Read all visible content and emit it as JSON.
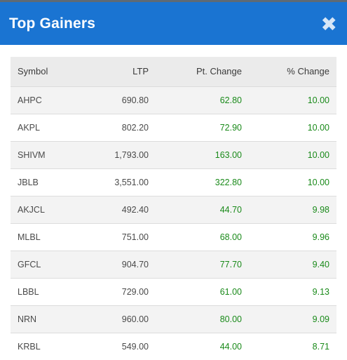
{
  "dialog": {
    "title": "Top Gainers",
    "close_icon": "close-icon"
  },
  "table": {
    "headers": {
      "symbol": "Symbol",
      "ltp": "LTP",
      "pt_change": "Pt. Change",
      "pct_change": "% Change"
    },
    "rows": [
      {
        "symbol": "AHPC",
        "ltp": "690.80",
        "pt_change": "62.80",
        "pct_change": "10.00"
      },
      {
        "symbol": "AKPL",
        "ltp": "802.20",
        "pt_change": "72.90",
        "pct_change": "10.00"
      },
      {
        "symbol": "SHIVM",
        "ltp": "1,793.00",
        "pt_change": "163.00",
        "pct_change": "10.00"
      },
      {
        "symbol": "JBLB",
        "ltp": "3,551.00",
        "pt_change": "322.80",
        "pct_change": "10.00"
      },
      {
        "symbol": "AKJCL",
        "ltp": "492.40",
        "pt_change": "44.70",
        "pct_change": "9.98"
      },
      {
        "symbol": "MLBL",
        "ltp": "751.00",
        "pt_change": "68.00",
        "pct_change": "9.96"
      },
      {
        "symbol": "GFCL",
        "ltp": "904.70",
        "pt_change": "77.70",
        "pct_change": "9.40"
      },
      {
        "symbol": "LBBL",
        "ltp": "729.00",
        "pt_change": "61.00",
        "pct_change": "9.13"
      },
      {
        "symbol": "NRN",
        "ltp": "960.00",
        "pt_change": "80.00",
        "pct_change": "9.09"
      },
      {
        "symbol": "KRBL",
        "ltp": "549.00",
        "pt_change": "44.00",
        "pct_change": "8.71"
      }
    ]
  },
  "colors": {
    "header_bg": "#1a74d2",
    "positive": "#1a8a1a"
  }
}
